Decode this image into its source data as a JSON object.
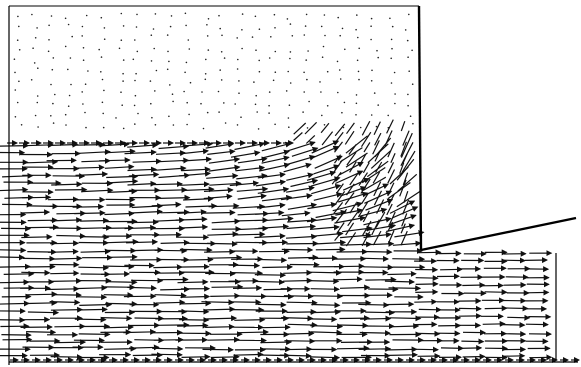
{
  "figure": {
    "type": "vector-field",
    "description_free": true,
    "colors": {
      "vectors": "#111111",
      "boundary": "#000000",
      "background": "#ffffff",
      "dots": "#222222"
    },
    "regions": [
      {
        "id": "upper-quiescent",
        "content": "dots"
      },
      {
        "id": "lower-inflow",
        "content": "rightward-arrows"
      },
      {
        "id": "turning-zone",
        "content": "upward-curving-arrows"
      },
      {
        "id": "outlet-channel",
        "content": "rightward-arrows"
      }
    ],
    "boundaries": [
      "vertical-wall",
      "inclined-plate",
      "outlet-right-wall",
      "left-wall",
      "bottom-edge"
    ]
  }
}
